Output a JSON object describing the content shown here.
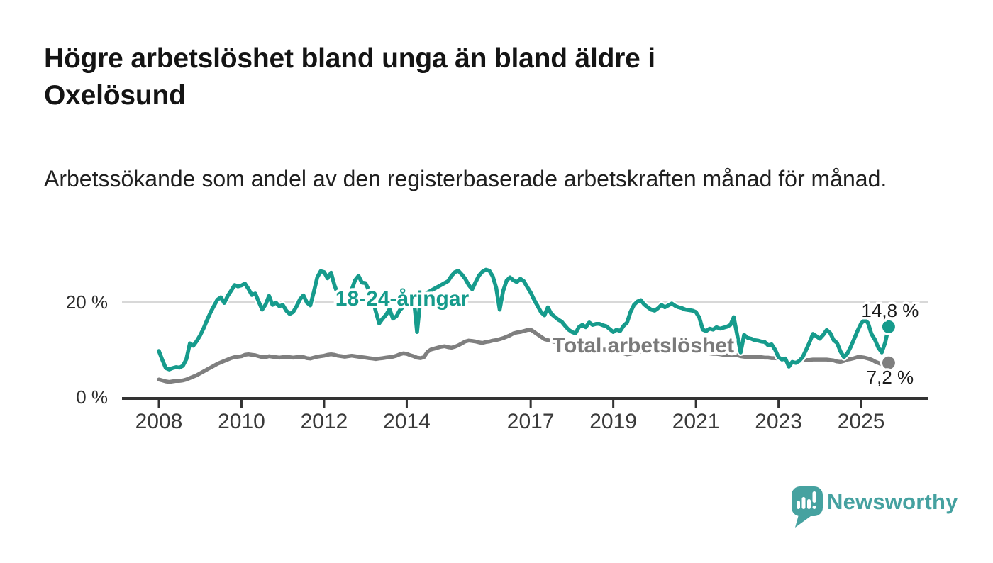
{
  "page": {
    "title": "Högre arbetslöshet bland unga än bland äldre i Oxelösund",
    "subtitle": "Arbetssökande som andel av den registerbaserade arbetskraften månad för månad."
  },
  "branding": {
    "wordmark": "Newsworthy",
    "icon": "bar-chart-speech-bubble",
    "color": "#45a1a0"
  },
  "chart_data": {
    "type": "line",
    "title": "Högre arbetslöshet bland unga än bland äldre i Oxelösund",
    "subtitle": "Arbetssökande som andel av den registerbaserade arbetskraften månad för månad.",
    "unit": "%",
    "frequency": "monthly",
    "start_year": 2008,
    "start_month": 1,
    "end_year": 2025,
    "end_month": 9,
    "grid": "single-line-at-20",
    "x_tick_years": [
      2008,
      2010,
      2012,
      2014,
      2017,
      2019,
      2021,
      2023,
      2025
    ],
    "y_axis": {
      "ticks": [
        {
          "value": 0,
          "label": "0 %"
        },
        {
          "value": 20,
          "label": "20 %"
        }
      ],
      "range": [
        0,
        28
      ]
    },
    "series": [
      {
        "name": "18-24-åringar",
        "color": "#169b8c",
        "end_label": "14,8 %",
        "last_value": 14.8,
        "values": [
          9.7,
          7.8,
          6.1,
          5.8,
          6.1,
          6.3,
          6.2,
          6.6,
          8.0,
          11.3,
          10.8,
          11.8,
          13.0,
          14.5,
          16.2,
          17.8,
          19.2,
          20.5,
          21.0,
          19.8,
          21.3,
          22.4,
          23.6,
          23.3,
          23.5,
          23.9,
          22.8,
          21.5,
          21.8,
          20.1,
          18.4,
          19.5,
          21.3,
          19.4,
          19.9,
          19.1,
          19.4,
          18.2,
          17.5,
          17.9,
          19.1,
          20.6,
          21.4,
          19.9,
          19.3,
          22.1,
          25.2,
          26.5,
          26.3,
          25.0,
          26.2,
          23.6,
          21.6,
          20.3,
          19.5,
          20.9,
          22.6,
          24.6,
          25.5,
          24.1,
          24.0,
          22.5,
          21.0,
          18.0,
          15.5,
          16.5,
          17.3,
          18.5,
          16.5,
          17.0,
          18.3,
          19.0,
          19.8,
          20.6,
          21.2,
          13.7,
          20.8,
          21.5,
          22.0,
          22.4,
          22.8,
          23.2,
          23.6,
          24.0,
          24.4,
          25.5,
          26.3,
          26.6,
          25.8,
          24.9,
          23.6,
          22.7,
          24.2,
          25.6,
          26.4,
          26.8,
          26.6,
          25.4,
          23.0,
          18.4,
          22.3,
          24.5,
          25.2,
          24.6,
          24.2,
          24.9,
          24.4,
          23.2,
          22.0,
          20.5,
          19.2,
          17.9,
          17.2,
          18.9,
          17.5,
          16.9,
          16.3,
          15.9,
          15.0,
          14.2,
          13.7,
          13.4,
          14.7,
          15.2,
          14.7,
          15.7,
          15.2,
          15.4,
          15.4,
          15.1,
          14.9,
          14.3,
          13.7,
          14.2,
          13.9,
          15.0,
          15.7,
          17.9,
          19.4,
          20.1,
          20.4,
          19.5,
          18.9,
          18.4,
          18.2,
          18.7,
          19.4,
          18.9,
          19.3,
          19.7,
          19.2,
          18.9,
          18.7,
          18.4,
          18.3,
          18.2,
          17.9,
          16.7,
          14.2,
          13.9,
          14.4,
          14.2,
          14.7,
          14.4,
          14.6,
          14.8,
          15.2,
          16.8,
          13.0,
          9.4,
          13.1,
          12.5,
          12.3,
          12.0,
          11.9,
          11.7,
          11.6,
          10.9,
          11.1,
          10.0,
          8.4,
          7.9,
          8.1,
          6.4,
          7.4,
          7.2,
          7.6,
          8.4,
          9.9,
          11.5,
          13.3,
          12.8,
          12.3,
          13.1,
          14.1,
          13.5,
          12.0,
          11.4,
          9.6,
          8.4,
          9.2,
          10.6,
          12.3,
          14.0,
          15.5,
          16.3,
          15.6,
          13.3,
          12.1,
          10.4,
          9.4,
          11.5,
          14.8
        ]
      },
      {
        "name": "Total arbetslöshet",
        "color": "#7f7f7f",
        "end_label": "7,2 %",
        "last_value": 7.2,
        "values": [
          3.7,
          3.5,
          3.3,
          3.2,
          3.3,
          3.4,
          3.4,
          3.5,
          3.7,
          4.0,
          4.3,
          4.6,
          5.0,
          5.4,
          5.8,
          6.2,
          6.6,
          7.0,
          7.3,
          7.6,
          7.9,
          8.2,
          8.4,
          8.5,
          8.6,
          8.9,
          9.0,
          8.9,
          8.8,
          8.6,
          8.4,
          8.4,
          8.6,
          8.5,
          8.4,
          8.3,
          8.4,
          8.5,
          8.4,
          8.3,
          8.4,
          8.5,
          8.4,
          8.2,
          8.1,
          8.3,
          8.5,
          8.6,
          8.7,
          8.9,
          9.0,
          8.9,
          8.7,
          8.6,
          8.5,
          8.6,
          8.7,
          8.6,
          8.5,
          8.4,
          8.3,
          8.2,
          8.1,
          8.0,
          8.1,
          8.2,
          8.3,
          8.4,
          8.5,
          8.7,
          9.0,
          9.2,
          9.1,
          8.8,
          8.6,
          8.3,
          8.2,
          8.4,
          9.5,
          10.0,
          10.2,
          10.4,
          10.6,
          10.7,
          10.5,
          10.4,
          10.6,
          10.9,
          11.3,
          11.7,
          11.9,
          11.8,
          11.7,
          11.5,
          11.4,
          11.6,
          11.7,
          11.9,
          12.0,
          12.2,
          12.4,
          12.7,
          13.0,
          13.4,
          13.6,
          13.7,
          13.9,
          14.1,
          14.2,
          13.7,
          13.2,
          12.7,
          12.2,
          12.0,
          11.8,
          11.6,
          11.4,
          11.2,
          11.0,
          10.8,
          10.7,
          10.5,
          10.4,
          10.3,
          10.2,
          10.3,
          10.2,
          10.1,
          10.0,
          10.0,
          10.0,
          10.0,
          10.0,
          9.8,
          9.5,
          9.2,
          9.0,
          9.1,
          9.3,
          9.5,
          9.6,
          9.8,
          9.9,
          10.0,
          10.1,
          10.3,
          10.5,
          10.6,
          10.5,
          10.4,
          10.3,
          10.3,
          10.2,
          10.1,
          10.0,
          10.0,
          9.9,
          9.7,
          9.4,
          9.3,
          9.2,
          9.1,
          9.1,
          9.0,
          8.9,
          8.9,
          8.9,
          8.9,
          8.8,
          8.6,
          8.5,
          8.4,
          8.4,
          8.4,
          8.4,
          8.4,
          8.3,
          8.3,
          8.2,
          8.2,
          8.1,
          8.0,
          7.8,
          7.4,
          7.5,
          7.6,
          7.7,
          7.7,
          7.8,
          7.8,
          7.9,
          7.9,
          7.9,
          7.9,
          7.9,
          7.8,
          7.7,
          7.5,
          7.4,
          7.6,
          7.9,
          8.0,
          8.2,
          8.4,
          8.4,
          8.3,
          8.1,
          7.9,
          7.5,
          7.2,
          6.9,
          7.0,
          7.2
        ]
      }
    ],
    "legend_position": "inline-labels-on-lines",
    "colors": {
      "youth_line": "#169b8c",
      "total_line": "#7f7f7f",
      "gridline": "#d8d8d8",
      "axis": "#333333"
    }
  }
}
